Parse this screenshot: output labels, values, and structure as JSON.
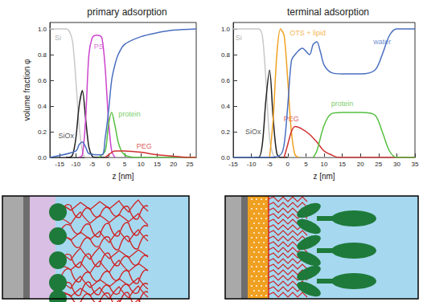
{
  "chart_data": [
    {
      "type": "line",
      "title": "primary adsorption",
      "xlabel": "z [nm]",
      "ylabel": "volume fraction φ",
      "xlim": [
        -18,
        27
      ],
      "xticks": [
        -15,
        -10,
        -5,
        0,
        5,
        10,
        15,
        20,
        25
      ],
      "ylim": [
        0,
        1.05
      ],
      "yticks": [
        {
          "value": 0,
          "label": "0.0"
        },
        0.2,
        0.4,
        0.6,
        0.8,
        {
          "value": 1,
          "label": "1.0"
        }
      ],
      "grid": false,
      "series": [
        {
          "color": "#c8c8c8",
          "x": [
            -18,
            -13,
            -12,
            -11,
            -10,
            -9,
            -8,
            -7,
            27
          ],
          "values": [
            1,
            1,
            0.98,
            0.9,
            0.6,
            0.25,
            0.05,
            0,
            0
          ]
        },
        {
          "color": "#222222",
          "x": [
            -13,
            -12,
            -11,
            -10,
            -9,
            -8,
            -7,
            -6,
            -5,
            -4,
            0
          ],
          "values": [
            0,
            0,
            0.02,
            0.15,
            0.4,
            0.52,
            0.3,
            0.08,
            0.01,
            0,
            0
          ]
        },
        {
          "color": "#cc44cc",
          "x": [
            -9,
            -8,
            -7,
            -6,
            -5,
            -4,
            -3,
            -2,
            -1,
            0,
            1,
            2
          ],
          "values": [
            0,
            0.02,
            0.3,
            0.8,
            0.93,
            0.95,
            0.95,
            0.93,
            0.7,
            0.3,
            0.05,
            0
          ]
        },
        {
          "color": "#55c040",
          "x": [
            -3,
            -1,
            0,
            1,
            2,
            3,
            4,
            5,
            6,
            8,
            27
          ],
          "values": [
            0,
            0.05,
            0.25,
            0.35,
            0.25,
            0.12,
            0.05,
            0.02,
            0.01,
            0,
            0
          ]
        },
        {
          "color": "#d03030",
          "x": [
            -1,
            0,
            2,
            5,
            10,
            15,
            20,
            25,
            27
          ],
          "values": [
            0,
            0.02,
            0.05,
            0.05,
            0.04,
            0.02,
            0.01,
            0,
            0
          ]
        },
        {
          "color": "#4a6fc0",
          "x": [
            -18,
            -10,
            -9,
            -8,
            -7,
            -6,
            -2,
            -1,
            0,
            1,
            2,
            3,
            5,
            10,
            15,
            20,
            27
          ],
          "values": [
            0,
            0.05,
            0.1,
            0.12,
            0.08,
            0.03,
            0.02,
            0.15,
            0.35,
            0.6,
            0.72,
            0.8,
            0.88,
            0.94,
            0.97,
            0.99,
            1.0
          ]
        }
      ],
      "annotations": [
        {
          "text": "Si",
          "x": -15.5,
          "y": 0.93,
          "color": "#999999"
        },
        {
          "text": "SiOx",
          "x": -13,
          "y": 0.17,
          "color": "#222222"
        },
        {
          "text": "PS",
          "x": -3,
          "y": 0.86,
          "color": "#cc44cc"
        },
        {
          "text": "protein",
          "x": 6.5,
          "y": 0.34,
          "color": "#55c040"
        },
        {
          "text": "PEG",
          "x": 11,
          "y": 0.09,
          "color": "#d03030"
        }
      ]
    },
    {
      "type": "line",
      "title": "terminal adsorption",
      "xlabel": "z [nm]",
      "xlim": [
        -15,
        35
      ],
      "xticks": [
        -15,
        -10,
        -5,
        0,
        5,
        10,
        15,
        20,
        25,
        30,
        35
      ],
      "ylim": [
        0,
        1.05
      ],
      "yticks": [
        {
          "value": 0,
          "label": "0.0"
        },
        0.2,
        0.4,
        0.6,
        0.8,
        {
          "value": 1,
          "label": "1.0"
        }
      ],
      "grid": false,
      "series": [
        {
          "color": "#c8c8c8",
          "x": [
            -15,
            -8,
            -7,
            -6,
            -5,
            -4,
            -3,
            35
          ],
          "values": [
            1,
            1,
            0.95,
            0.6,
            0.15,
            0.02,
            0,
            0
          ]
        },
        {
          "color": "#222222",
          "x": [
            -9,
            -8,
            -7,
            -6,
            -5,
            -4,
            -3,
            -2,
            0
          ],
          "values": [
            0,
            0,
            0.1,
            0.45,
            0.68,
            0.3,
            0.03,
            0,
            0
          ]
        },
        {
          "color": "#f0a020",
          "x": [
            -5,
            -4,
            -3,
            -2,
            -1,
            0,
            1,
            2,
            3
          ],
          "values": [
            0,
            0.3,
            0.8,
            1.0,
            0.95,
            0.6,
            0.2,
            0.02,
            0
          ]
        },
        {
          "color": "#d03030",
          "x": [
            -1,
            0,
            1,
            2,
            4,
            6,
            8,
            10,
            12,
            14,
            35
          ],
          "values": [
            0,
            0.1,
            0.2,
            0.24,
            0.22,
            0.18,
            0.12,
            0.05,
            0.02,
            0,
            0
          ]
        },
        {
          "color": "#55c040",
          "x": [
            7,
            8,
            10,
            12,
            15,
            20,
            24,
            26,
            28,
            30,
            35
          ],
          "values": [
            0,
            0.05,
            0.25,
            0.34,
            0.35,
            0.35,
            0.33,
            0.2,
            0.05,
            0,
            0
          ]
        },
        {
          "color": "#4a6fc0",
          "x": [
            -15,
            -5,
            -2,
            -1,
            0,
            1,
            2,
            4,
            6,
            7,
            8,
            9,
            10,
            12,
            15,
            20,
            24,
            26,
            28,
            30,
            35
          ],
          "values": [
            0,
            0,
            0.02,
            0.1,
            0.4,
            0.75,
            0.8,
            0.85,
            0.8,
            0.88,
            0.9,
            0.82,
            0.72,
            0.66,
            0.65,
            0.65,
            0.68,
            0.8,
            0.95,
            1.0,
            1.0
          ]
        }
      ],
      "annotations": [
        {
          "text": "Si",
          "x": -13.5,
          "y": 0.93,
          "color": "#999999"
        },
        {
          "text": "SiOx",
          "x": -9.5,
          "y": 0.2,
          "color": "#222222"
        },
        {
          "text": "OTS + lipid",
          "x": 5.5,
          "y": 0.97,
          "color": "#f0a020"
        },
        {
          "text": "PEG",
          "x": 1,
          "y": 0.3,
          "color": "#d03030"
        },
        {
          "text": "protein",
          "x": 15,
          "y": 0.42,
          "color": "#55c040"
        },
        {
          "text": "water",
          "x": 26,
          "y": 0.9,
          "color": "#4a6fc0"
        }
      ]
    }
  ]
}
